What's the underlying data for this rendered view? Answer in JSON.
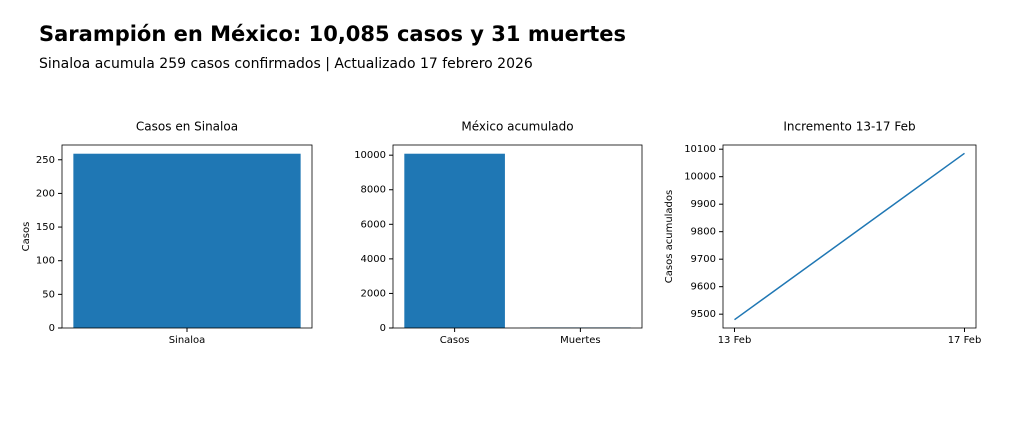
{
  "header": {
    "title": "Sarampión en México: 10,085 casos y 31 muertes",
    "subtitle": "Sinaloa acumula 259 casos confirmados | Actualizado 17 febrero 2026"
  },
  "chart_data": [
    {
      "type": "bar",
      "title": "Casos en Sinaloa",
      "y_label": "Casos",
      "categories": [
        "Sinaloa"
      ],
      "values": [
        259
      ],
      "color": "#1f77b4",
      "ylim": [
        0,
        271.95
      ],
      "yticks": [
        0,
        50,
        100,
        150,
        200,
        250
      ]
    },
    {
      "type": "bar",
      "title": "México acumulado",
      "categories": [
        "Casos",
        "Muertes"
      ],
      "values": [
        10085,
        31
      ],
      "color": "#1f77b4",
      "ylim": [
        0,
        10589.25
      ],
      "yticks": [
        0,
        2000,
        4000,
        6000,
        8000,
        10000
      ]
    },
    {
      "type": "line",
      "title": "Incremento 13-17 Feb",
      "y_label": "Casos acumulados",
      "categories": [
        "13 Feb",
        "17 Feb"
      ],
      "values": [
        9480,
        10085
      ],
      "color": "#1f77b4",
      "ylim": [
        9449.75,
        10115.25
      ],
      "yticks": [
        9500,
        9600,
        9700,
        9800,
        9900,
        10000,
        10100
      ]
    }
  ]
}
